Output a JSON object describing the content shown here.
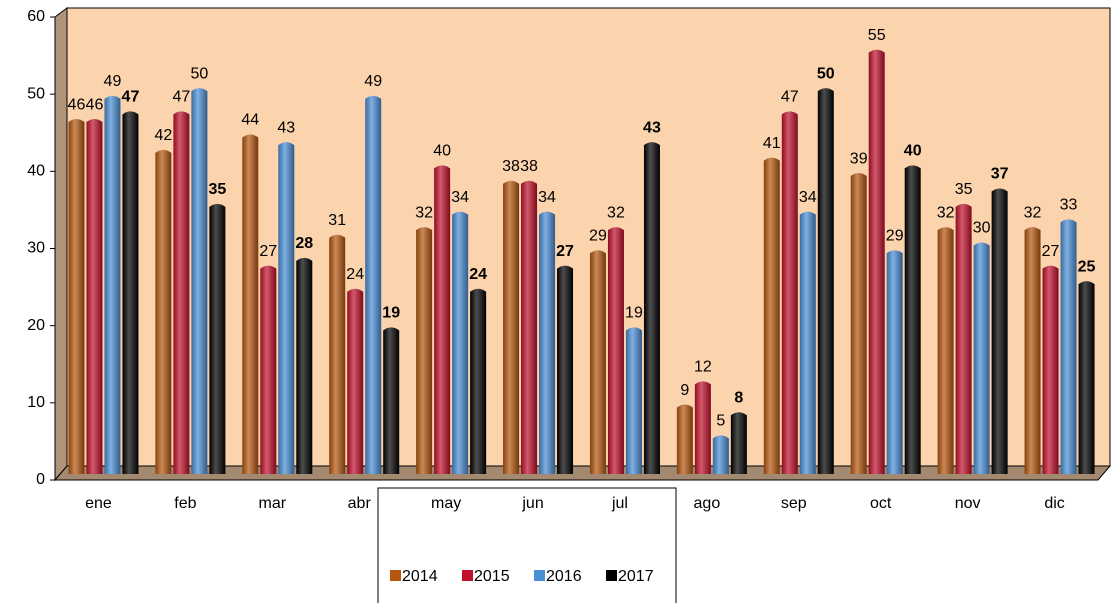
{
  "chart_data": {
    "type": "bar3d",
    "categories": [
      "ene",
      "feb",
      "mar",
      "abr",
      "may",
      "jun",
      "jul",
      "ago",
      "sep",
      "oct",
      "nov",
      "dic"
    ],
    "series": [
      {
        "name": "2014",
        "color": "#b4560e",
        "values": [
          46,
          42,
          44,
          31,
          32,
          38,
          29,
          9,
          41,
          39,
          32,
          32
        ],
        "label_bold": false
      },
      {
        "name": "2015",
        "color": "#c0102c",
        "values": [
          46,
          47,
          27,
          24,
          40,
          38,
          32,
          12,
          47,
          55,
          35,
          27
        ],
        "label_bold": false
      },
      {
        "name": "2016",
        "color": "#4a8ed6",
        "values": [
          49,
          50,
          43,
          49,
          34,
          34,
          19,
          5,
          34,
          29,
          30,
          33
        ],
        "label_bold": false
      },
      {
        "name": "2017",
        "color": "#000000",
        "values": [
          47,
          35,
          28,
          19,
          24,
          27,
          43,
          8,
          50,
          40,
          37,
          25
        ],
        "label_bold": true
      }
    ],
    "ylim": [
      0,
      60
    ],
    "yticks": [
      0,
      10,
      20,
      30,
      40,
      50,
      60
    ],
    "legend": "bottom",
    "background": "#fbd3ad"
  }
}
